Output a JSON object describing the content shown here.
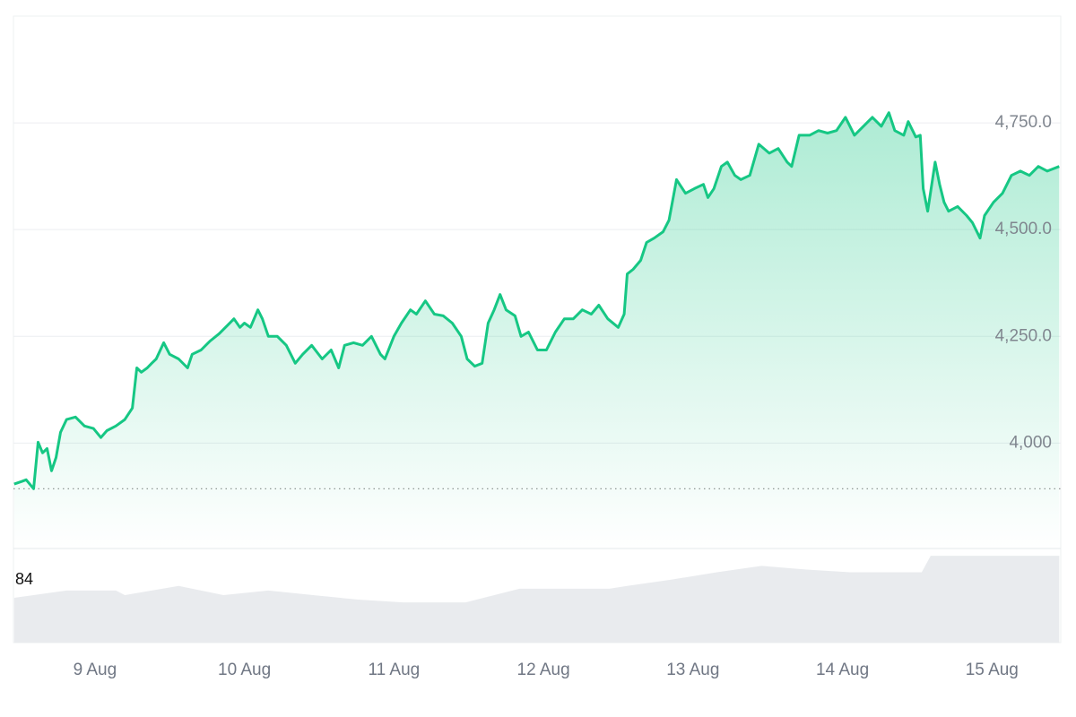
{
  "chart_data": {
    "type": "line",
    "x": [
      8.46,
      8.51,
      8.54,
      8.59,
      8.62,
      8.65,
      8.68,
      8.71,
      8.74,
      8.77,
      8.81,
      8.87,
      8.93,
      8.99,
      9.04,
      9.08,
      9.14,
      9.2,
      9.25,
      9.28,
      9.31,
      9.35,
      9.38,
      9.41,
      9.46,
      9.5,
      9.56,
      9.62,
      9.65,
      9.71,
      9.77,
      9.83,
      9.89,
      9.93,
      9.97,
      10.0,
      10.04,
      10.09,
      10.12,
      10.16,
      10.22,
      10.28,
      10.34,
      10.39,
      10.45,
      10.52,
      10.58,
      10.63,
      10.67,
      10.73,
      10.79,
      10.85,
      10.91,
      10.94,
      11.0,
      11.05,
      11.11,
      11.15,
      11.21,
      11.27,
      11.33,
      11.39,
      11.45,
      11.49,
      11.54,
      11.59,
      11.63,
      11.67,
      11.71,
      11.75,
      11.81,
      11.85,
      11.9,
      11.96,
      12.02,
      12.08,
      12.14,
      12.2,
      12.26,
      12.32,
      12.37,
      12.43,
      12.5,
      12.54,
      12.56,
      12.6,
      12.65,
      12.69,
      12.74,
      12.8,
      12.84,
      12.89,
      12.95,
      13.01,
      13.07,
      13.1,
      13.14,
      13.19,
      13.23,
      13.28,
      13.32,
      13.38,
      13.44,
      13.51,
      13.57,
      13.63,
      13.66,
      13.71,
      13.78,
      13.84,
      13.9,
      13.96,
      14.02,
      14.08,
      14.14,
      14.2,
      14.26,
      14.31,
      14.35,
      14.41,
      14.44,
      14.49,
      14.52,
      14.54,
      14.57,
      14.62,
      14.65,
      14.68,
      14.71,
      14.77,
      14.83,
      14.87,
      14.92,
      14.95,
      15.01,
      15.07,
      15.13,
      15.19,
      15.25,
      15.31,
      15.37,
      15.45
    ],
    "series": [
      {
        "color": "#16c784",
        "values": [
          3904,
          3910,
          3914,
          3893,
          4002,
          3977,
          3987,
          3935,
          3966,
          4025,
          4055,
          4061,
          4040,
          4034,
          4013,
          4029,
          4040,
          4055,
          4082,
          4176,
          4166,
          4176,
          4187,
          4197,
          4235,
          4208,
          4197,
          4176,
          4208,
          4218,
          4239,
          4256,
          4277,
          4291,
          4271,
          4281,
          4271,
          4312,
          4291,
          4250,
          4250,
          4229,
          4187,
          4208,
          4229,
          4197,
          4218,
          4176,
          4229,
          4235,
          4229,
          4250,
          4208,
          4197,
          4250,
          4281,
          4312,
          4302,
          4333,
          4302,
          4298,
          4281,
          4250,
          4197,
          4180,
          4187,
          4281,
          4312,
          4348,
          4312,
          4298,
          4250,
          4260,
          4218,
          4218,
          4260,
          4291,
          4291,
          4312,
          4302,
          4323,
          4291,
          4271,
          4302,
          4396,
          4407,
          4428,
          4470,
          4480,
          4495,
          4522,
          4617,
          4585,
          4596,
          4606,
          4575,
          4596,
          4648,
          4658,
          4627,
          4617,
          4627,
          4700,
          4679,
          4690,
          4658,
          4648,
          4721,
          4721,
          4732,
          4726,
          4732,
          4763,
          4721,
          4742,
          4763,
          4742,
          4774,
          4732,
          4721,
          4753,
          4717,
          4721,
          4596,
          4543,
          4658,
          4606,
          4564,
          4543,
          4554,
          4533,
          4516,
          4480,
          4533,
          4564,
          4585,
          4627,
          4637,
          4627,
          4648,
          4637,
          4648
        ]
      }
    ],
    "xlim": [
      8.455,
      15.46
    ],
    "xticks": [
      {
        "value": 9,
        "label": "9 Aug"
      },
      {
        "value": 10,
        "label": "10 Aug"
      },
      {
        "value": 11,
        "label": "11 Aug"
      },
      {
        "value": 12,
        "label": "12 Aug"
      },
      {
        "value": 13,
        "label": "13 Aug"
      },
      {
        "value": 14,
        "label": "14 Aug"
      },
      {
        "value": 15,
        "label": "15 Aug"
      }
    ],
    "ylim": [
      3753,
      5000
    ],
    "yticks": [
      {
        "value": 4000,
        "label": "4,000"
      },
      {
        "value": 4250,
        "label": "4,250.0"
      },
      {
        "value": 4500,
        "label": "4,500.0"
      },
      {
        "value": 4750,
        "label": "4,750.0"
      }
    ],
    "baseline": 3893,
    "grid": true,
    "volume": {
      "label": "84",
      "color": "#e9ebee",
      "ylim": [
        0,
        100
      ],
      "x": [
        8.46,
        8.81,
        9.14,
        9.2,
        9.56,
        9.86,
        10.16,
        10.46,
        10.76,
        11.06,
        11.48,
        11.6,
        11.84,
        12.44,
        12.56,
        12.86,
        13.16,
        13.46,
        13.75,
        14.05,
        14.53,
        14.59,
        15.45
      ],
      "values": [
        49,
        57,
        57,
        52,
        62,
        52,
        57,
        52,
        47,
        44,
        44,
        49,
        59,
        59,
        62,
        69,
        77,
        84,
        80,
        77,
        77,
        95,
        95
      ]
    }
  }
}
